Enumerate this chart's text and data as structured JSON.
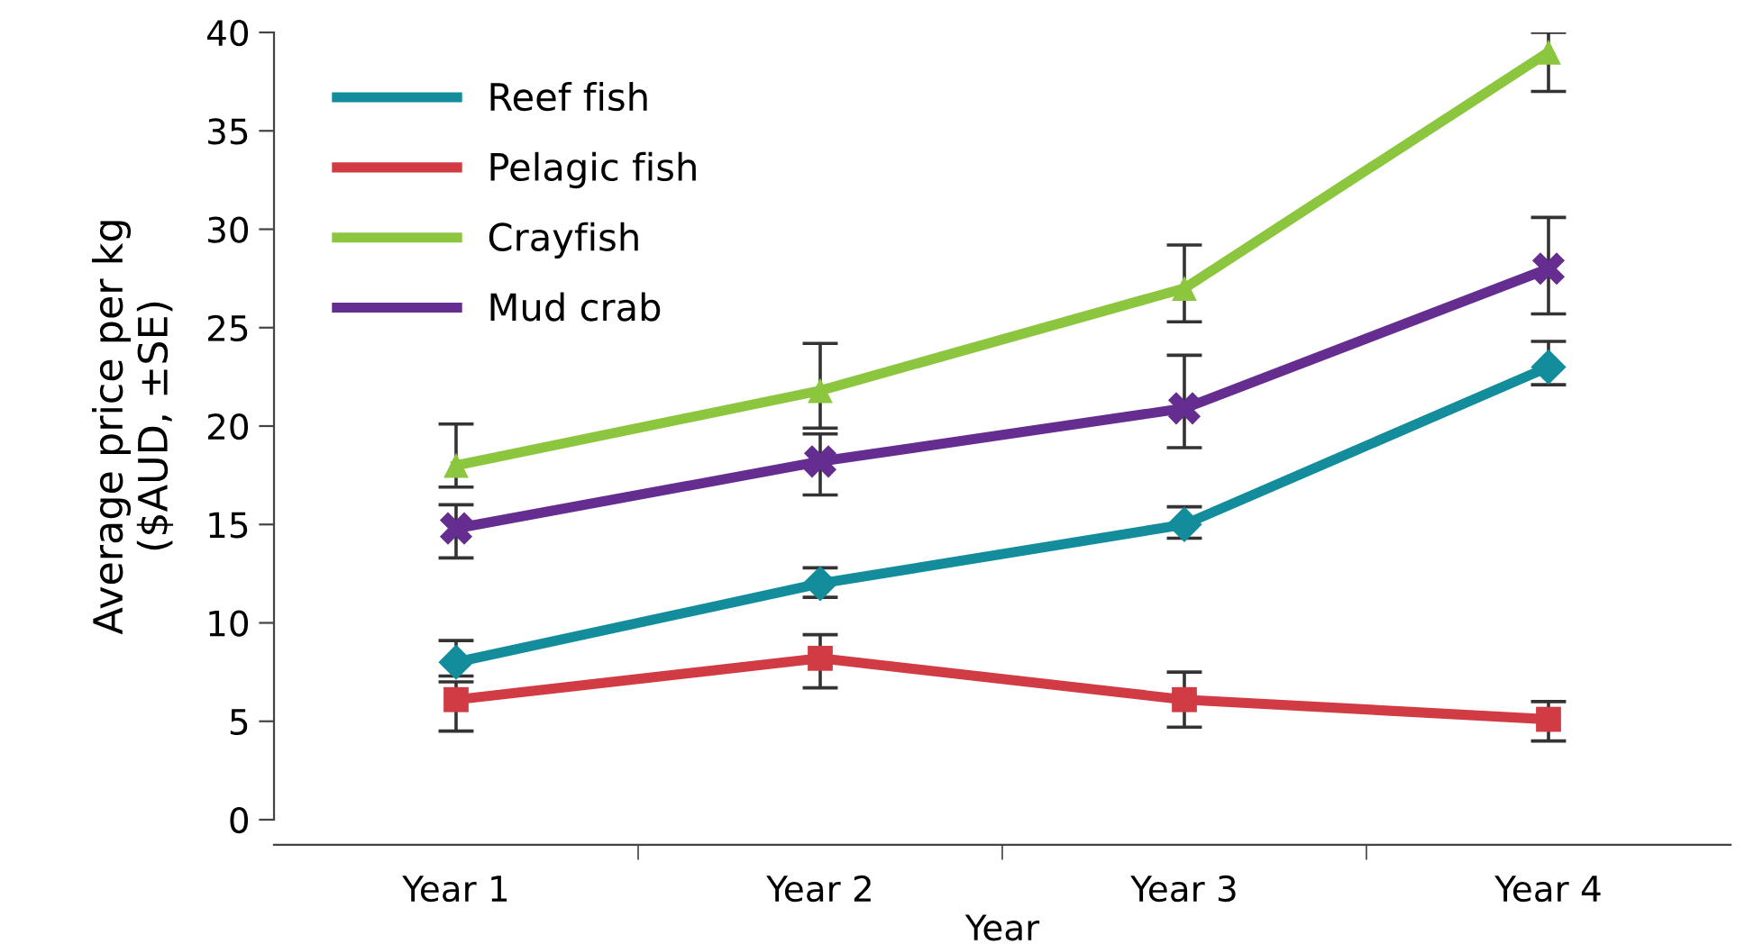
{
  "chart_data": {
    "type": "line",
    "xlabel": "Year",
    "ylabel": "Average price per kg\n($AUD, ±SE)",
    "categories": [
      "Year 1",
      "Year 2",
      "Year 3",
      "Year 4"
    ],
    "series": [
      {
        "name": "Reef fish",
        "color": "#138d9b",
        "marker": "diamond",
        "values": [
          8,
          12,
          15,
          23
        ],
        "errors": [
          [
            7.3,
            9.1
          ],
          [
            11.3,
            12.8
          ],
          [
            14.3,
            15.9
          ],
          [
            22.1,
            24.3
          ]
        ]
      },
      {
        "name": "Pelagic fish",
        "color": "#d13c44",
        "marker": "square",
        "values": [
          6.1,
          8.2,
          6.1,
          5.1
        ],
        "errors": [
          [
            4.5,
            7.0
          ],
          [
            6.7,
            9.4
          ],
          [
            4.7,
            7.5
          ],
          [
            4.0,
            6.0
          ]
        ]
      },
      {
        "name": "Crayfish",
        "color": "#8cc63f",
        "marker": "triangle",
        "values": [
          18,
          21.8,
          27,
          39
        ],
        "errors": [
          [
            16.9,
            20.1
          ],
          [
            19.9,
            24.2
          ],
          [
            25.3,
            29.2
          ],
          [
            37.0,
            40.0
          ]
        ]
      },
      {
        "name": "Mud crab",
        "color": "#662d91",
        "marker": "cross",
        "values": [
          14.8,
          18.2,
          20.9,
          28
        ],
        "errors": [
          [
            13.3,
            16.0
          ],
          [
            16.5,
            19.6
          ],
          [
            18.9,
            23.6
          ],
          [
            25.7,
            30.6
          ]
        ]
      }
    ],
    "ylim": [
      0,
      40
    ],
    "yticks": [
      0,
      5,
      10,
      15,
      20,
      25,
      30,
      35,
      40
    ],
    "grid": false,
    "legend": "top left",
    "line_style": "solid"
  }
}
